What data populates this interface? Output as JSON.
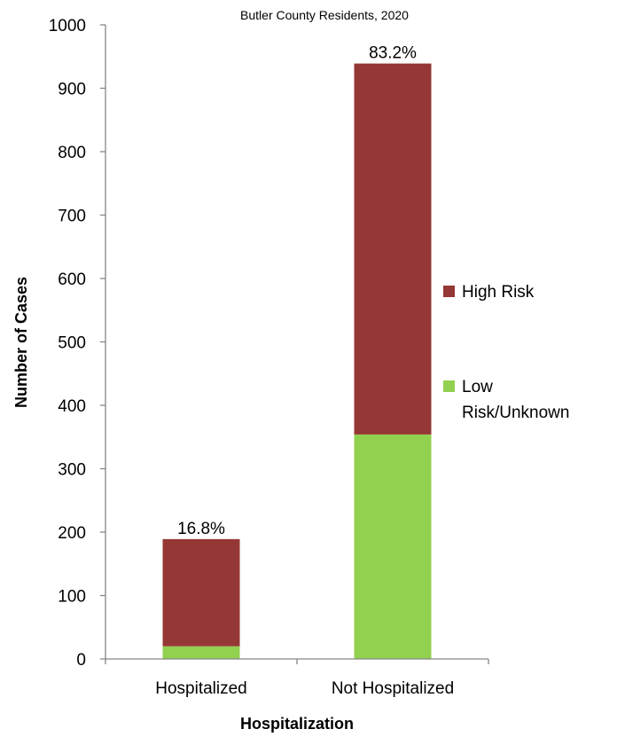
{
  "chart_data": {
    "type": "bar",
    "stacked": true,
    "title": "Butler County Residents, 2020",
    "xlabel": "Hospitalization",
    "ylabel": "Number of Cases",
    "categories": [
      "Hospitalized",
      "Not Hospitalized"
    ],
    "series": [
      {
        "name": "Low Risk/Unknown",
        "legend_lines": [
          "Low",
          "Risk/Unknown"
        ],
        "values": [
          20,
          354
        ],
        "color": "#92d050"
      },
      {
        "name": "High Risk",
        "legend_lines": [
          "High Risk"
        ],
        "values": [
          169,
          585
        ],
        "color": "#953735"
      }
    ],
    "data_labels": [
      "16.8%",
      "83.2%"
    ],
    "ylim": [
      0,
      1000
    ],
    "yticks": [
      0,
      100,
      200,
      300,
      400,
      500,
      600,
      700,
      800,
      900,
      1000
    ],
    "grid": false,
    "legend_position": "right"
  }
}
